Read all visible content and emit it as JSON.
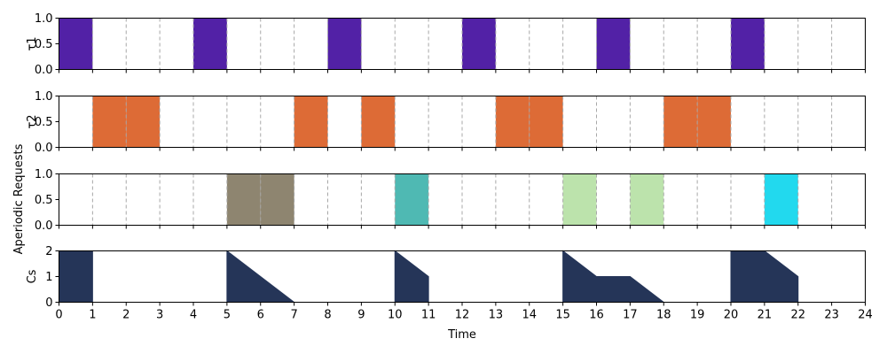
{
  "chart_data": {
    "type": "timeline",
    "xlabel": "Time",
    "xlim": [
      0,
      24
    ],
    "x_ticks": [
      0,
      1,
      2,
      3,
      4,
      5,
      6,
      7,
      8,
      9,
      10,
      11,
      12,
      13,
      14,
      15,
      16,
      17,
      18,
      19,
      20,
      21,
      22,
      23,
      24
    ],
    "grid": "vertical dashed at each integer time",
    "subplots": [
      {
        "id": "tau1",
        "ylabel": "τ1",
        "ylim": [
          0,
          1
        ],
        "y_ticks": [
          "0.0",
          "0.5",
          "1.0"
        ],
        "type": "bar",
        "color": "#5221a6",
        "intervals": [
          [
            0,
            1
          ],
          [
            4,
            5
          ],
          [
            8,
            9
          ],
          [
            12,
            13
          ],
          [
            16,
            17
          ],
          [
            20,
            21
          ]
        ]
      },
      {
        "id": "tau2",
        "ylabel": "τ2",
        "ylim": [
          0,
          1
        ],
        "y_ticks": [
          "0.0",
          "0.5",
          "1.0"
        ],
        "type": "bar",
        "color": "#dd6b36",
        "intervals": [
          [
            1,
            2
          ],
          [
            2,
            3
          ],
          [
            7,
            8
          ],
          [
            9,
            10
          ],
          [
            13,
            14
          ],
          [
            14,
            15
          ],
          [
            18,
            19
          ],
          [
            19,
            20
          ]
        ]
      },
      {
        "id": "aperiodic",
        "ylabel": "Aperiodic Requests",
        "ylim": [
          0,
          1
        ],
        "y_ticks": [
          "0.0",
          "0.5",
          "1.0"
        ],
        "type": "bar",
        "segments": [
          {
            "start": 5,
            "end": 6,
            "color": "#8e8570"
          },
          {
            "start": 6,
            "end": 7,
            "color": "#8e8570"
          },
          {
            "start": 10,
            "end": 11,
            "color": "#4fb9b3"
          },
          {
            "start": 15,
            "end": 16,
            "color": "#bce3ac"
          },
          {
            "start": 17,
            "end": 18,
            "color": "#bce3ac"
          },
          {
            "start": 21,
            "end": 22,
            "color": "#22d9ee"
          }
        ]
      },
      {
        "id": "cs",
        "ylabel": "Cs",
        "ylim": [
          0,
          2
        ],
        "y_ticks": [
          "0",
          "1",
          "2"
        ],
        "type": "area",
        "color": "#253558",
        "segments": [
          [
            [
              0,
              2
            ],
            [
              1,
              2
            ]
          ],
          [
            [
              5,
              2
            ],
            [
              6,
              1
            ],
            [
              7,
              0
            ]
          ],
          [
            [
              8,
              0
            ],
            [
              9,
              0
            ]
          ],
          [
            [
              10,
              2
            ],
            [
              11,
              1
            ]
          ],
          [
            [
              12,
              0
            ],
            [
              13,
              0
            ]
          ],
          [
            [
              15,
              2
            ],
            [
              16,
              1
            ],
            [
              17,
              1
            ],
            [
              18,
              0
            ]
          ],
          [
            [
              20,
              2
            ],
            [
              21,
              2
            ],
            [
              22,
              1
            ]
          ]
        ]
      }
    ]
  }
}
